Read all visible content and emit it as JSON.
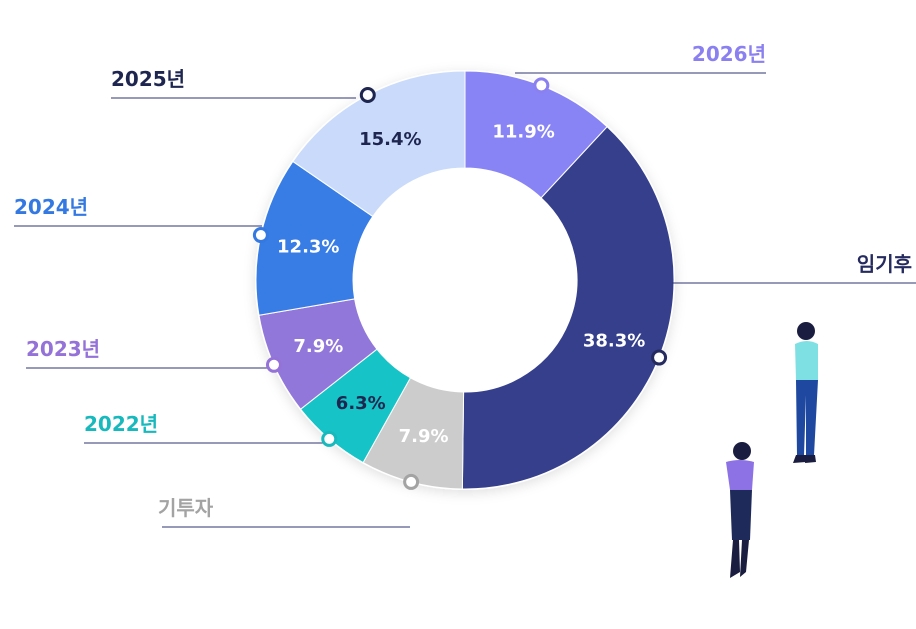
{
  "chart_data": {
    "type": "pie",
    "variant": "donut",
    "start": "top",
    "direction": "clockwise",
    "slices": [
      {
        "label": "2026년",
        "pct_label": "11.9%",
        "value": 11.9,
        "color": "#8884f5",
        "pct_color": "#ffffff",
        "label_color": "#8a80f0",
        "side": "right"
      },
      {
        "label": "임기후",
        "pct_label": "38.3%",
        "value": 38.3,
        "color": "#353f8c",
        "pct_color": "#ffffff",
        "label_color": "#252b5e",
        "side": "right"
      },
      {
        "label": "기투자",
        "pct_label": "7.9%",
        "value": 7.9,
        "color": "#cccccc",
        "pct_color": "#ffffff",
        "label_color": "#a3a3a3",
        "side": "left"
      },
      {
        "label": "2022년",
        "pct_label": "6.3%",
        "value": 6.3,
        "color": "#16c3c6",
        "pct_color": "#1e2650",
        "label_color": "#17b9bd",
        "side": "left"
      },
      {
        "label": "2023년",
        "pct_label": "7.9%",
        "value": 7.9,
        "color": "#9277da",
        "pct_color": "#ffffff",
        "label_color": "#9472d8",
        "side": "left"
      },
      {
        "label": "2024년",
        "pct_label": "12.3%",
        "value": 12.3,
        "color": "#377de5",
        "pct_color": "#ffffff",
        "label_color": "#3479e2",
        "side": "left"
      },
      {
        "label": "2025년",
        "pct_label": "15.4%",
        "value": 15.4,
        "color": "#c9dafa",
        "pct_color": "#1e2650",
        "label_color": "#1e2650",
        "side": "left"
      }
    ]
  },
  "colors": {
    "leader_line": "#2e3672",
    "figure_man_shirt": "#7fe0e4",
    "figure_man_pants": "#1f48a0",
    "figure_woman_top": "#8d72e6",
    "figure_woman_skirt": "#1e2a5a",
    "figure_skin_hair": "#1a1d3f"
  }
}
